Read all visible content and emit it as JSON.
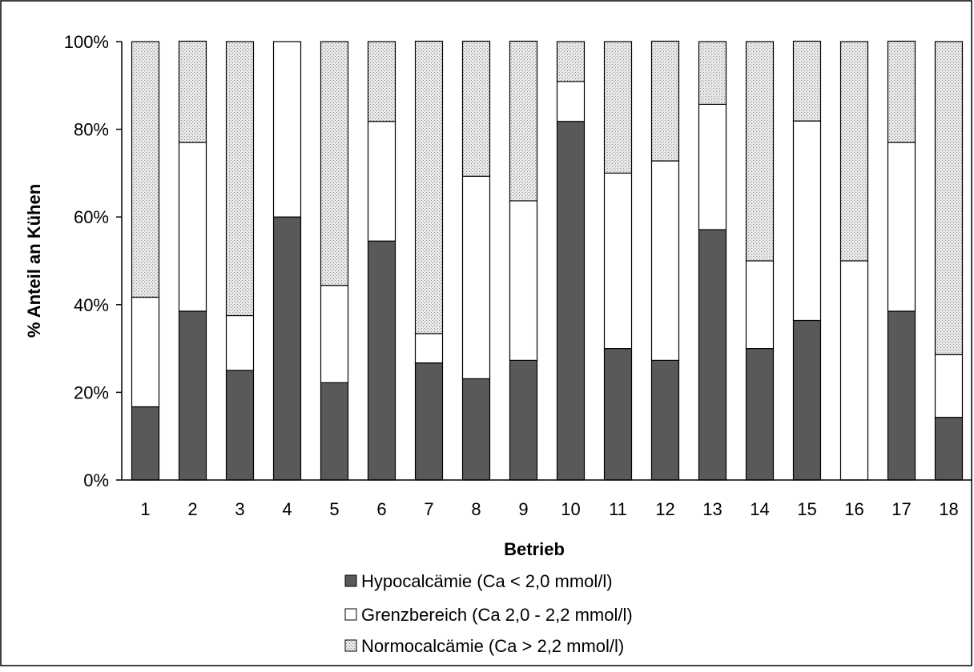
{
  "chart_data": {
    "type": "bar",
    "stacked": true,
    "percent_stacked": true,
    "categories": [
      "1",
      "2",
      "3",
      "4",
      "5",
      "6",
      "7",
      "8",
      "9",
      "10",
      "11",
      "12",
      "13",
      "14",
      "15",
      "16",
      "17",
      "18"
    ],
    "series": [
      {
        "name": "Hypocalcämie (Ca < 2,0 mmol/l)",
        "values": [
          16.7,
          38.5,
          25.0,
          60.0,
          22.2,
          54.5,
          26.7,
          23.1,
          27.3,
          81.8,
          30.0,
          27.3,
          57.1,
          30.0,
          36.4,
          0.0,
          38.5,
          14.3
        ]
      },
      {
        "name": "Grenzbereich (Ca 2,0 - 2,2 mmol/l)",
        "values": [
          25.0,
          38.5,
          12.5,
          40.0,
          22.2,
          27.3,
          6.7,
          46.2,
          36.4,
          9.1,
          40.0,
          45.5,
          28.6,
          20.0,
          45.5,
          50.0,
          38.5,
          14.3
        ]
      },
      {
        "name": "Normocalcämie (Ca > 2,2 mmol/l)",
        "values": [
          58.3,
          23.1,
          62.5,
          0.0,
          55.6,
          18.2,
          66.7,
          30.8,
          36.4,
          9.1,
          30.0,
          27.3,
          14.3,
          50.0,
          18.2,
          50.0,
          23.1,
          71.4
        ]
      }
    ],
    "xlabel": "Betrieb",
    "ylabel": "% Anteil an Kühen",
    "ylim": [
      0,
      100
    ],
    "yticks": [
      "0%",
      "20%",
      "40%",
      "60%",
      "80%",
      "100%"
    ],
    "grid": false,
    "legend_position": "bottom",
    "colors": {
      "hypo": "#595959",
      "grenz": "#ffffff",
      "normo": "#d9d9d9",
      "outline": "#000000"
    }
  }
}
